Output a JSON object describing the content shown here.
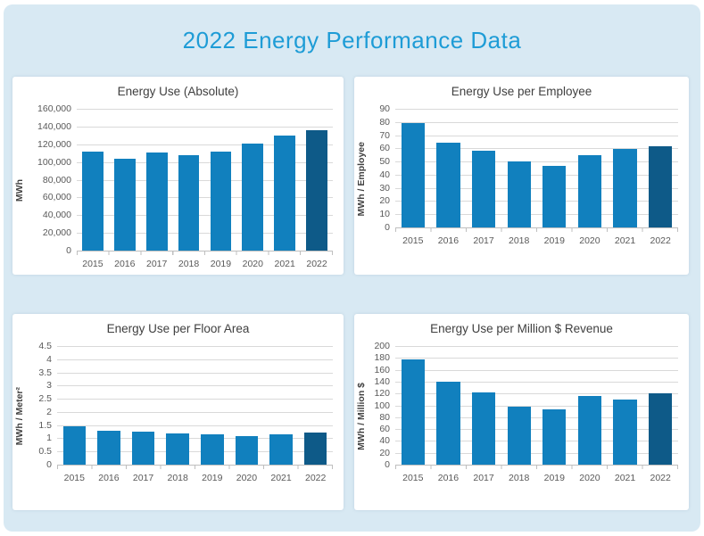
{
  "page": {
    "title": "2022 Energy Performance Data"
  },
  "colors": {
    "background": "#d8e9f3",
    "card": "#ffffff",
    "title_text": "#1e9cd6",
    "chart_title_text": "#3f3f3f",
    "tick_text": "#595959",
    "gridline": "#d9d9d9",
    "axis_line": "#bfbfbf",
    "bar": "#1180be",
    "bar_highlight": "#0e5a88"
  },
  "chart_data": [
    {
      "type": "bar",
      "title": "Energy Use (Absolute)",
      "ylabel": "MWh",
      "xlabel": "",
      "categories": [
        "2015",
        "2016",
        "2017",
        "2018",
        "2019",
        "2020",
        "2021",
        "2022"
      ],
      "values": [
        112000,
        104000,
        111000,
        108000,
        111500,
        121000,
        130000,
        135500
      ],
      "ylim": [
        0,
        160000
      ],
      "ytick_step": 20000,
      "ytick_format": "comma",
      "grid": true,
      "legend": false,
      "highlight_category": "2022"
    },
    {
      "type": "bar",
      "title": "Energy Use per Employee",
      "ylabel": "MWh / Employee",
      "xlabel": "",
      "categories": [
        "2015",
        "2016",
        "2017",
        "2018",
        "2019",
        "2020",
        "2021",
        "2022"
      ],
      "values": [
        79,
        64.5,
        58,
        50,
        46.5,
        54.5,
        59.5,
        61.5
      ],
      "ylim": [
        0,
        90
      ],
      "ytick_step": 10,
      "ytick_format": "plain",
      "grid": true,
      "legend": false,
      "highlight_category": "2022"
    },
    {
      "type": "bar",
      "title": "Energy Use per Floor Area",
      "ylabel": "MWh / Meter²",
      "xlabel": "",
      "categories": [
        "2015",
        "2016",
        "2017",
        "2018",
        "2019",
        "2020",
        "2021",
        "2022"
      ],
      "values": [
        1.44,
        1.27,
        1.26,
        1.18,
        1.16,
        1.09,
        1.14,
        1.21
      ],
      "ylim": [
        0,
        4.5
      ],
      "ytick_step": 0.5,
      "ytick_format": "plain",
      "grid": true,
      "legend": false,
      "highlight_category": "2022"
    },
    {
      "type": "bar",
      "title": "Energy Use per Million $ Revenue",
      "ylabel": "MWh / Million $",
      "xlabel": "",
      "categories": [
        "2015",
        "2016",
        "2017",
        "2018",
        "2019",
        "2020",
        "2021",
        "2022"
      ],
      "values": [
        178,
        140,
        122,
        98,
        94,
        116,
        110,
        121
      ],
      "ylim": [
        0,
        200
      ],
      "ytick_step": 20,
      "ytick_format": "plain",
      "grid": true,
      "legend": false,
      "highlight_category": "2022"
    }
  ]
}
